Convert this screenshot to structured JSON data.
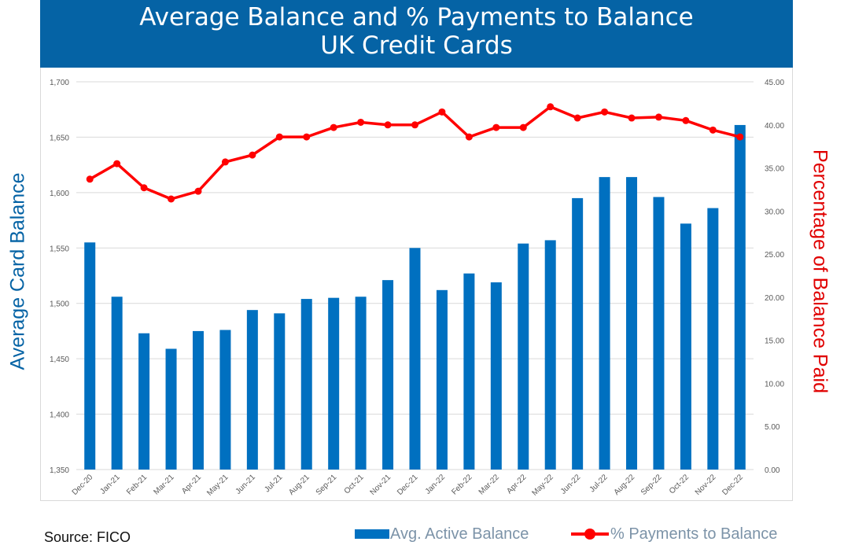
{
  "header": {
    "title_line1": "Average Balance and % Payments to Balance",
    "title_line2": "UK Credit Cards"
  },
  "source": "Source: FICO",
  "chart_data": {
    "type": "bar+line",
    "title": "Average Balance and % Payments to Balance UK Credit Cards",
    "categories": [
      "Dec-20",
      "Jan-21",
      "Feb-21",
      "Mar-21",
      "Apr-21",
      "May-21",
      "Jun-21",
      "Jul-21",
      "Aug-21",
      "Sep-21",
      "Oct-21",
      "Nov-21",
      "Dec-21",
      "Jan-22",
      "Feb-22",
      "Mar-22",
      "Apr-22",
      "May-22",
      "Jun-22",
      "Jul-22",
      "Aug-22",
      "Sep-22",
      "Oct-22",
      "Nov-22",
      "Dec-22"
    ],
    "ylabel_left": "Average Card Balance",
    "ylabel_right": "Percentage of Balance Paid",
    "y_left": {
      "min": 1350,
      "max": 1700,
      "step": 50,
      "ticks": [
        "1,350",
        "1,400",
        "1,450",
        "1,500",
        "1,550",
        "1,600",
        "1,650",
        "1,700"
      ]
    },
    "y_right": {
      "min": 0,
      "max": 45,
      "step": 5,
      "ticks": [
        "0.00",
        "5.00",
        "10.00",
        "15.00",
        "20.00",
        "25.00",
        "30.00",
        "35.00",
        "40.00",
        "45.00"
      ]
    },
    "grid": true,
    "series": [
      {
        "name": "Avg. Active Balance",
        "type": "bar",
        "axis": "left",
        "color": "#0070c0",
        "values": [
          1555,
          1506,
          1473,
          1459,
          1475,
          1476,
          1494,
          1491,
          1504,
          1505,
          1506,
          1521,
          1550,
          1512,
          1527,
          1519,
          1554,
          1557,
          1595,
          1614,
          1614,
          1596,
          1572,
          1586,
          1661
        ]
      },
      {
        "name": "% Payments to Balance",
        "type": "line",
        "axis": "right",
        "color": "#ff0000",
        "values": [
          33.7,
          35.5,
          32.7,
          31.4,
          32.3,
          35.7,
          36.5,
          38.6,
          38.6,
          39.7,
          40.3,
          40.0,
          40.0,
          41.5,
          38.6,
          39.7,
          39.7,
          42.1,
          40.8,
          41.5,
          40.8,
          40.9,
          40.5,
          39.4,
          38.6
        ]
      }
    ],
    "legend": [
      "Avg. Active Balance",
      "% Payments to Balance"
    ],
    "legend_position": "bottom-right"
  }
}
